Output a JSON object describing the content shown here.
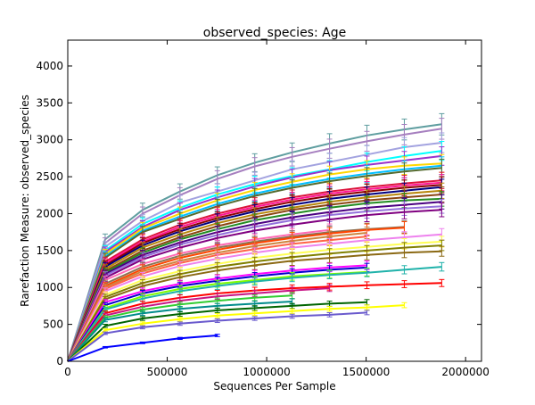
{
  "chart_data": {
    "type": "line",
    "title": "observed_species: Age",
    "xlabel": "Sequences Per Sample",
    "ylabel": "Rarefaction Measure: observed_species",
    "xlim": [
      0,
      2080000
    ],
    "ylim": [
      0,
      4350
    ],
    "xticks": [
      0,
      500000,
      1000000,
      1500000,
      2000000
    ],
    "yticks": [
      0,
      500,
      1000,
      1500,
      2000,
      2500,
      3000,
      3500,
      4000
    ],
    "x_points": [
      0,
      188000,
      376000,
      564000,
      752000,
      940000,
      1128000,
      1316000,
      1504000,
      1692000,
      1880000
    ],
    "grid": false,
    "legend": "none",
    "error_bars": true,
    "series": [
      {
        "color": "#5f9ea0",
        "values": [
          0,
          1650,
          2050,
          2300,
          2520,
          2690,
          2830,
          2950,
          3060,
          3140,
          3210
        ]
      },
      {
        "color": "#a67fbf",
        "values": [
          0,
          1600,
          2000,
          2250,
          2470,
          2640,
          2770,
          2880,
          2980,
          3070,
          3150
        ]
      },
      {
        "color": "#a3a3e0",
        "values": [
          0,
          1550,
          1900,
          2150,
          2300,
          2450,
          2600,
          2700,
          2800,
          2900,
          2960
        ]
      },
      {
        "color": "#00ffff",
        "values": [
          0,
          1500,
          1860,
          2080,
          2260,
          2400,
          2510,
          2600,
          2700,
          2780,
          2850
        ]
      },
      {
        "color": "#9932cc",
        "values": [
          0,
          1480,
          1820,
          2050,
          2220,
          2370,
          2490,
          2590,
          2660,
          2720,
          2780
        ]
      },
      {
        "color": "#ffd700",
        "values": [
          0,
          1450,
          1800,
          2000,
          2180,
          2320,
          2430,
          2530,
          2600,
          2650,
          2680
        ]
      },
      {
        "color": "#00bfff",
        "values": [
          0,
          1420,
          1770,
          1960,
          2130,
          2270,
          2380,
          2470,
          2540,
          2600,
          2650
        ]
      },
      {
        "color": "#556b2f",
        "values": [
          0,
          1400,
          1750,
          1930,
          2100,
          2240,
          2350,
          2440,
          2510,
          2570,
          2620
        ]
      },
      {
        "color": "#dc143c",
        "values": [
          0,
          1350,
          1650,
          1850,
          2000,
          2120,
          2220,
          2300,
          2360,
          2410,
          2450
        ]
      },
      {
        "color": "#ff1493",
        "values": [
          0,
          1330,
          1620,
          1820,
          1970,
          2090,
          2190,
          2270,
          2330,
          2380,
          2420
        ]
      },
      {
        "color": "#8b0000",
        "values": [
          0,
          1300,
          1600,
          1790,
          1940,
          2060,
          2160,
          2240,
          2300,
          2350,
          2390
        ]
      },
      {
        "color": "#000080",
        "values": [
          0,
          1280,
          1570,
          1760,
          1910,
          2030,
          2120,
          2200,
          2260,
          2310,
          2360
        ]
      },
      {
        "color": "#b8860b",
        "values": [
          0,
          1250,
          1540,
          1720,
          1870,
          1990,
          2080,
          2160,
          2220,
          2270,
          2310
        ]
      },
      {
        "color": "#8b4513",
        "values": [
          0,
          1220,
          1500,
          1680,
          1830,
          1950,
          2050,
          2120,
          2180,
          2220,
          2260
        ]
      },
      {
        "color": "#228b22",
        "values": [
          0,
          1200,
          1470,
          1650,
          1790,
          1910,
          2000,
          2080,
          2140,
          2180,
          2200
        ]
      },
      {
        "color": "#4b0082",
        "values": [
          0,
          1180,
          1440,
          1610,
          1750,
          1860,
          1950,
          2020,
          2080,
          2120,
          2160
        ]
      },
      {
        "color": "#9370db",
        "values": [
          0,
          1160,
          1410,
          1580,
          1710,
          1820,
          1910,
          1980,
          2030,
          2070,
          2100
        ]
      },
      {
        "color": "#800080",
        "values": [
          0,
          1130,
          1380,
          1540,
          1670,
          1770,
          1850,
          1920,
          1980,
          2020,
          2050
        ]
      },
      {
        "color": "#ff69b4",
        "values": [
          0,
          1100,
          1320,
          1460,
          1570,
          1650,
          1720,
          1780,
          null,
          null,
          null
        ]
      },
      {
        "color": "#8b7355",
        "values": [
          0,
          1050,
          1280,
          1430,
          1540,
          1620,
          1690,
          1750,
          1790,
          1820,
          null
        ]
      },
      {
        "color": "#ff4500",
        "values": [
          0,
          1020,
          1250,
          1400,
          1510,
          1600,
          1670,
          1730,
          1780,
          1810,
          null
        ]
      },
      {
        "color": "#cd853f",
        "values": [
          0,
          1000,
          1220,
          1360,
          1470,
          1560,
          1630,
          1690,
          1740,
          null,
          null
        ]
      },
      {
        "color": "#ff6347",
        "values": [
          0,
          980,
          1190,
          1330,
          1440,
          1520,
          1590,
          1640,
          1690,
          null,
          null
        ]
      },
      {
        "color": "#ee82ee",
        "values": [
          0,
          950,
          1150,
          1290,
          1390,
          1470,
          1540,
          1590,
          1640,
          1680,
          1720
        ]
      },
      {
        "color": "#ffff54",
        "values": [
          0,
          900,
          1100,
          1220,
          1320,
          1400,
          1460,
          1510,
          1550,
          1590,
          1620
        ]
      },
      {
        "color": "#808000",
        "values": [
          0,
          870,
          1060,
          1180,
          1280,
          1350,
          1410,
          1460,
          1500,
          1540,
          1570
        ]
      },
      {
        "color": "#8b6914",
        "values": [
          0,
          840,
          1020,
          1140,
          1230,
          1300,
          1360,
          1400,
          1440,
          1470,
          1490
        ]
      },
      {
        "color": "#ff00ff",
        "values": [
          0,
          800,
          950,
          1050,
          1120,
          1180,
          1230,
          1270,
          1300,
          null,
          null
        ]
      },
      {
        "color": "#0000cd",
        "values": [
          0,
          760,
          920,
          1020,
          1090,
          1150,
          1200,
          1240,
          1270,
          null,
          null
        ]
      },
      {
        "color": "#7cfc00",
        "values": [
          0,
          720,
          880,
          980,
          1050,
          1100,
          1150,
          1180,
          1210,
          null,
          null
        ]
      },
      {
        "color": "#20b2aa",
        "values": [
          0,
          700,
          850,
          950,
          1020,
          1080,
          1130,
          1170,
          1200,
          1240,
          1280
        ]
      },
      {
        "color": "#ff0000",
        "values": [
          0,
          650,
          780,
          860,
          920,
          960,
          990,
          1010,
          1030,
          1045,
          1060
        ]
      },
      {
        "color": "#c71585",
        "values": [
          0,
          620,
          740,
          820,
          880,
          920,
          960,
          990,
          null,
          null,
          null
        ]
      },
      {
        "color": "#32cd32",
        "values": [
          0,
          590,
          700,
          770,
          820,
          860,
          890,
          null,
          null,
          null,
          null
        ]
      },
      {
        "color": "#008b8b",
        "values": [
          0,
          560,
          650,
          710,
          750,
          780,
          810,
          null,
          null,
          null,
          null
        ]
      },
      {
        "color": "#006400",
        "values": [
          0,
          480,
          580,
          640,
          690,
          720,
          750,
          780,
          800,
          null,
          null
        ]
      },
      {
        "color": "#ffff00",
        "values": [
          0,
          420,
          510,
          570,
          620,
          650,
          680,
          710,
          730,
          760,
          null
        ]
      },
      {
        "color": "#6a5acd",
        "values": [
          0,
          380,
          460,
          510,
          550,
          580,
          610,
          630,
          660,
          null,
          null
        ]
      },
      {
        "color": "#0000ff",
        "values": [
          0,
          190,
          250,
          310,
          350,
          null,
          null,
          null,
          null,
          null,
          null
        ]
      }
    ]
  }
}
